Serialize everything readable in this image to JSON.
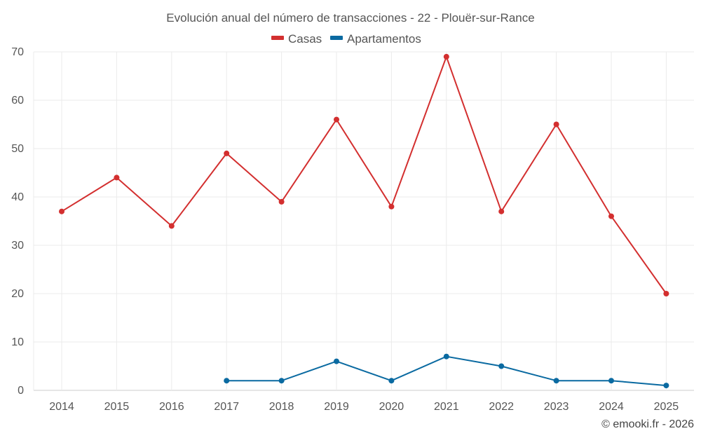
{
  "chart_data": {
    "type": "line",
    "title": "Evolución anual del número de transacciones - 22 - Plouër-sur-Rance",
    "categories": [
      "2014",
      "2015",
      "2016",
      "2017",
      "2018",
      "2019",
      "2020",
      "2021",
      "2022",
      "2023",
      "2024",
      "2025"
    ],
    "series": [
      {
        "name": "Casas",
        "color": "#d32f2f",
        "values": [
          37,
          44,
          34,
          49,
          39,
          56,
          38,
          69,
          37,
          55,
          36,
          20
        ]
      },
      {
        "name": "Apartamentos",
        "color": "#0a6aa1",
        "values": [
          null,
          null,
          null,
          2,
          2,
          6,
          2,
          7,
          5,
          2,
          2,
          1
        ]
      }
    ],
    "yticks": [
      0,
      10,
      20,
      30,
      40,
      50,
      60,
      70
    ],
    "ylim": [
      0,
      70
    ],
    "legend_position": "top-center",
    "grid": true,
    "xlabel": "",
    "ylabel": ""
  },
  "credit": "© emooki.fr - 2026"
}
